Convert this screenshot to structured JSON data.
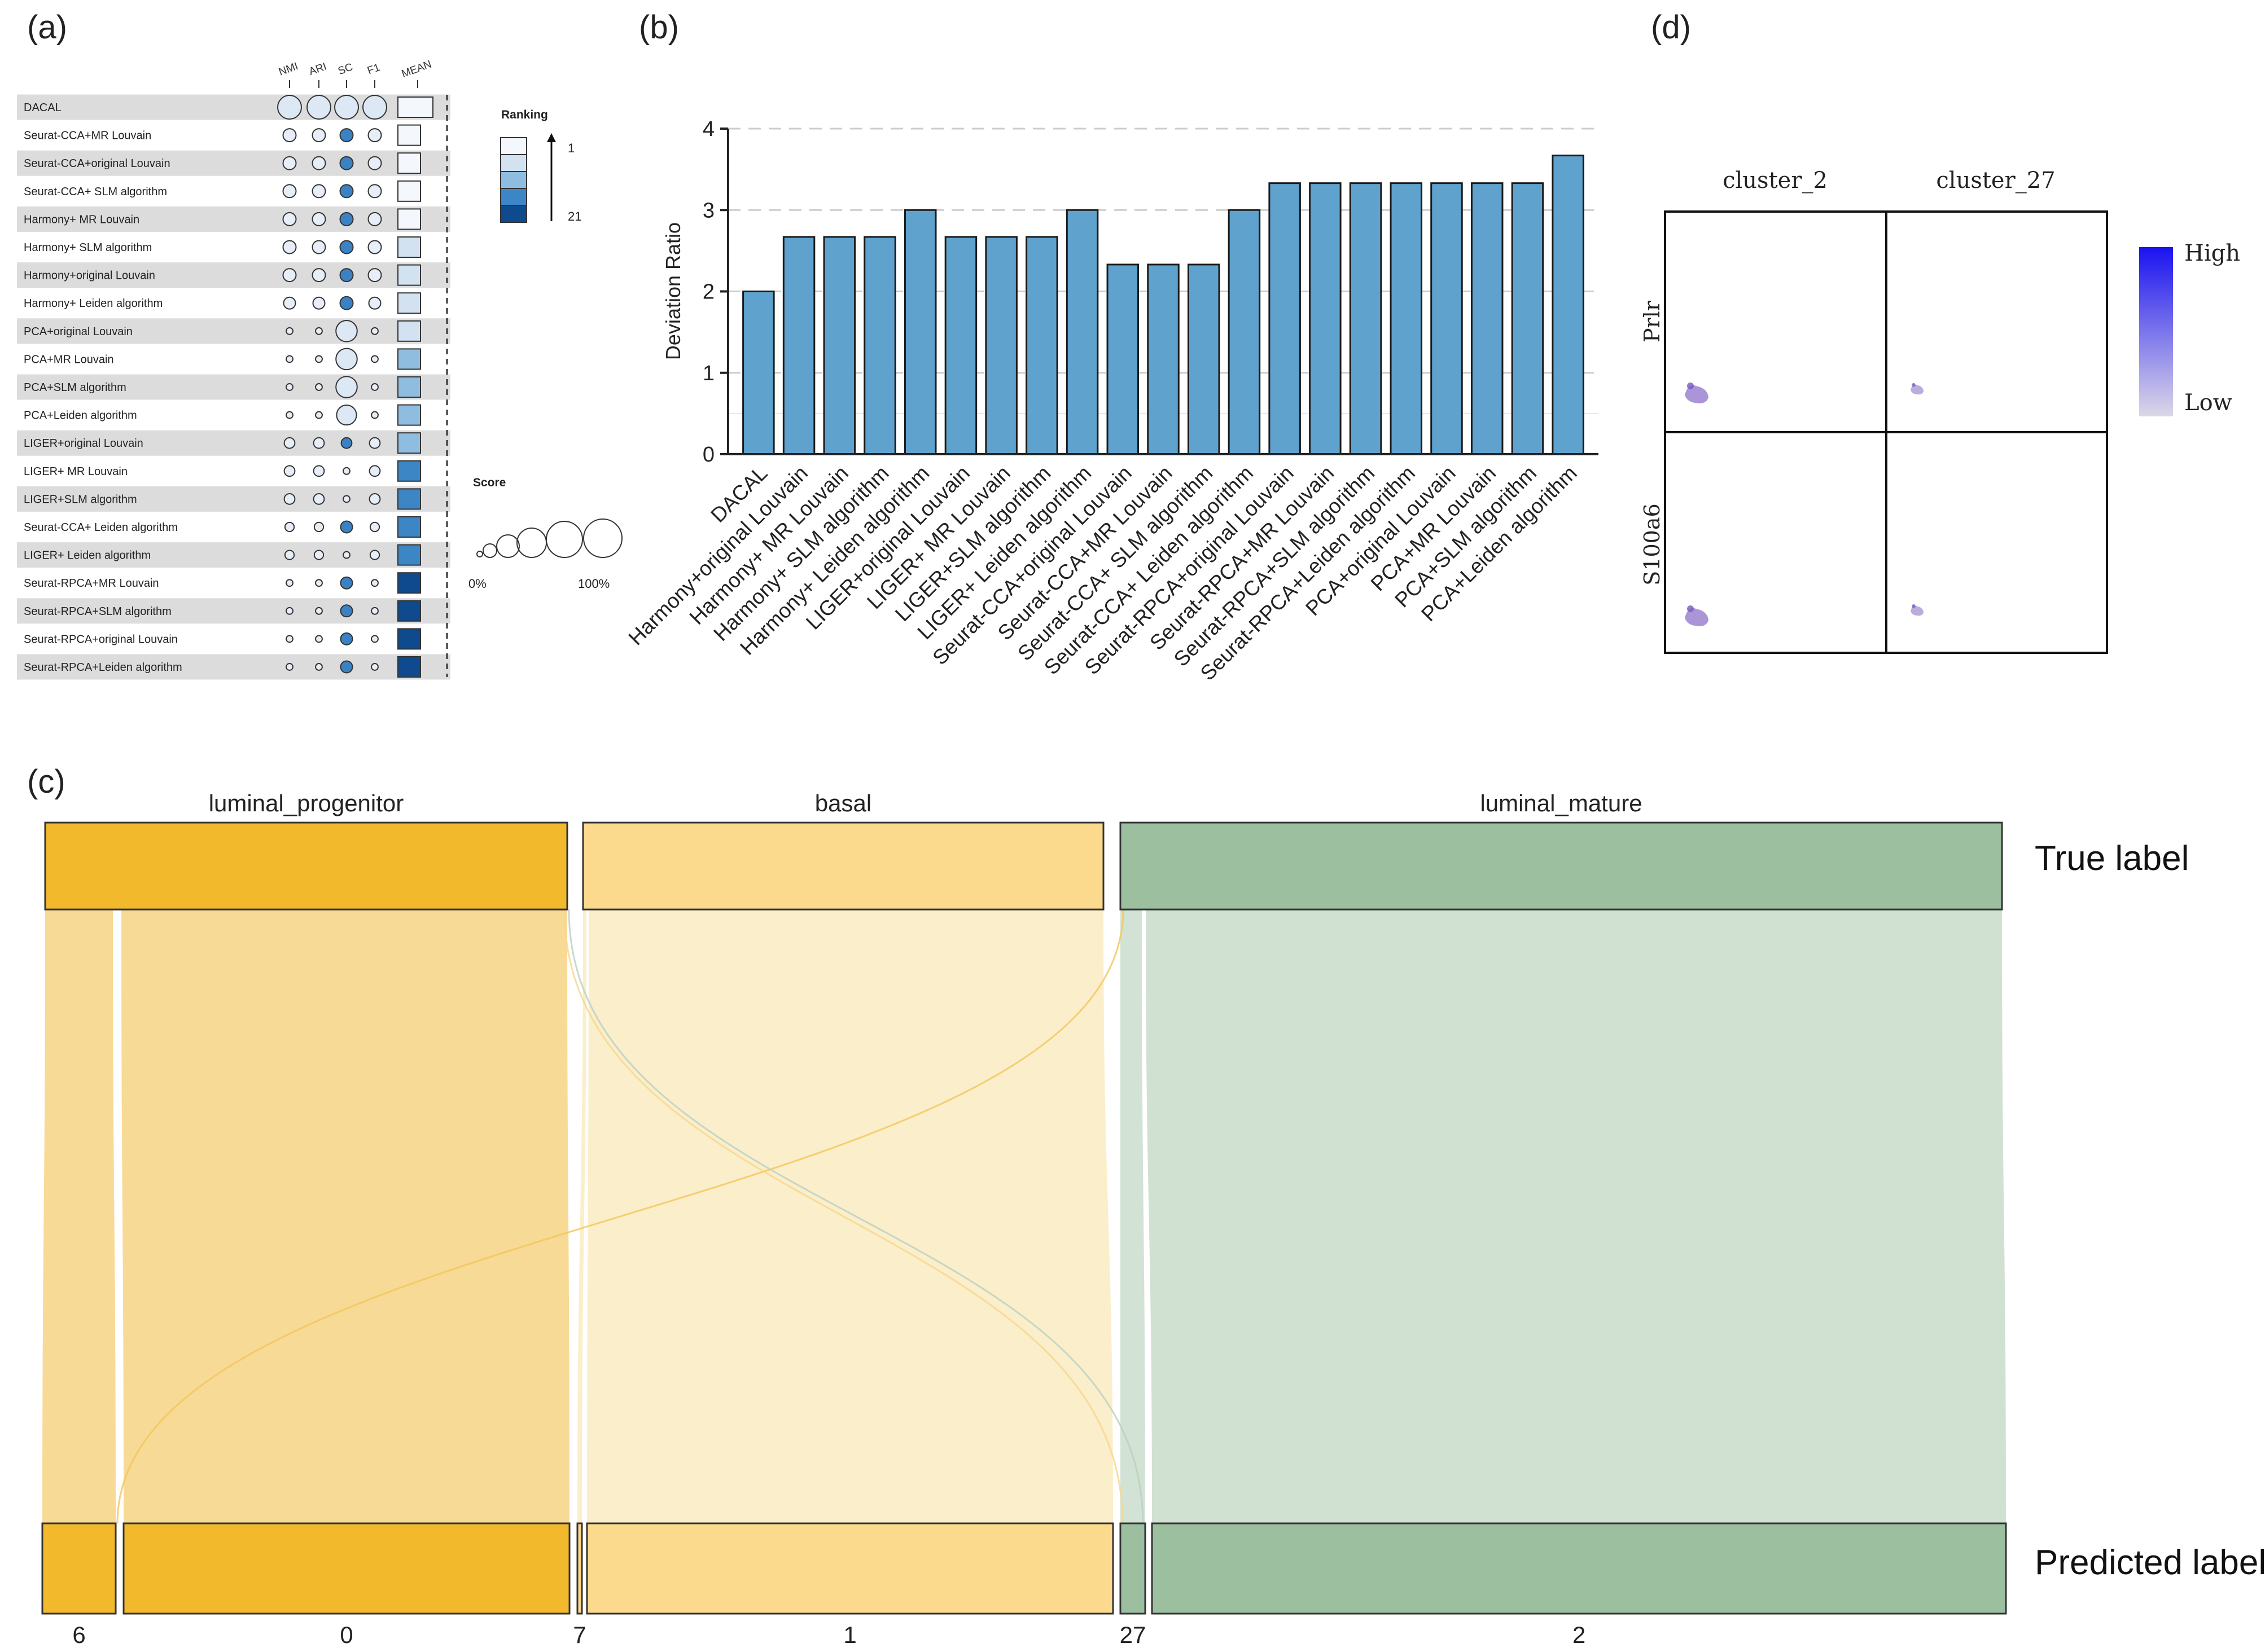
{
  "panels": {
    "a": "(a)",
    "b": "(b)",
    "c": "(c)",
    "d": "(d)"
  },
  "chart_data": [
    {
      "panel": "a",
      "type": "table",
      "columns": [
        "NMI",
        "ARI",
        "SC",
        "F1",
        "MEAN"
      ],
      "rows": [
        {
          "method": "DACAL",
          "scores": [
            100,
            100,
            100,
            100
          ],
          "rank": 1
        },
        {
          "method": "Seurat-CCA+MR Louvain",
          "scores": [
            30,
            30,
            30,
            30
          ],
          "rank": 2
        },
        {
          "method": "Seurat-CCA+original Louvain",
          "scores": [
            30,
            30,
            30,
            30
          ],
          "rank": 3
        },
        {
          "method": "Seurat-CCA+ SLM algorithm",
          "scores": [
            30,
            30,
            30,
            30
          ],
          "rank": 4
        },
        {
          "method": "Harmony+ MR Louvain",
          "scores": [
            30,
            30,
            30,
            30
          ],
          "rank": 5
        },
        {
          "method": "Harmony+ SLM algorithm",
          "scores": [
            30,
            30,
            30,
            30
          ],
          "rank": 6
        },
        {
          "method": "Harmony+original Louvain",
          "scores": [
            30,
            30,
            30,
            30
          ],
          "rank": 7
        },
        {
          "method": "Harmony+ Leiden algorithm",
          "scores": [
            25,
            25,
            30,
            25
          ],
          "rank": 8
        },
        {
          "method": "PCA+original Louvain",
          "scores": [
            8,
            8,
            80,
            8
          ],
          "rank": 9
        },
        {
          "method": "PCA+MR Louvain",
          "scores": [
            8,
            8,
            80,
            8
          ],
          "rank": 10
        },
        {
          "method": "PCA+SLM algorithm",
          "scores": [
            8,
            8,
            80,
            8
          ],
          "rank": 11
        },
        {
          "method": "PCA+Leiden algorithm",
          "scores": [
            8,
            8,
            70,
            8
          ],
          "rank": 12
        },
        {
          "method": "LIGER+original Louvain",
          "scores": [
            20,
            20,
            20,
            20
          ],
          "rank": 13
        },
        {
          "method": "LIGER+ MR Louvain",
          "scores": [
            20,
            20,
            8,
            20
          ],
          "rank": 14
        },
        {
          "method": "LIGER+SLM algorithm",
          "scores": [
            20,
            20,
            8,
            20
          ],
          "rank": 15
        },
        {
          "method": "Seurat-CCA+ Leiden algorithm",
          "scores": [
            15,
            15,
            25,
            15
          ],
          "rank": 16
        },
        {
          "method": "LIGER+ Leiden algorithm",
          "scores": [
            15,
            15,
            8,
            15
          ],
          "rank": 17
        },
        {
          "method": "Seurat-RPCA+MR Louvain",
          "scores": [
            8,
            8,
            25,
            8
          ],
          "rank": 18
        },
        {
          "method": "Seurat-RPCA+SLM algorithm",
          "scores": [
            8,
            8,
            25,
            8
          ],
          "rank": 19
        },
        {
          "method": "Seurat-RPCA+original Louvain",
          "scores": [
            8,
            8,
            25,
            8
          ],
          "rank": 20
        },
        {
          "method": "Seurat-RPCA+Leiden algorithm",
          "scores": [
            8,
            8,
            25,
            8
          ],
          "rank": 21
        }
      ],
      "ranking_legend": {
        "title": "Ranking",
        "min_label": "1",
        "max_label": "21",
        "colors": [
          "#f4f8fd",
          "#d2e2f1",
          "#8fbde0",
          "#3d86c6",
          "#0f4a8e"
        ]
      },
      "score_legend": {
        "title": "Score",
        "min_label": "0%",
        "max_label": "100%"
      }
    },
    {
      "panel": "b",
      "type": "bar",
      "categories": [
        "DACAL",
        "Harmony+original Louvain",
        "Harmony+ MR Louvain",
        "Harmony+ SLM algorithm",
        "Harmony+ Leiden algorithm",
        "LIGER+original Louvain",
        "LIGER+ MR Louvain",
        "LIGER+SLM algorithm",
        "LIGER+ Leiden algorithm",
        "Seurat-CCA+original Louvain",
        "Seurat-CCA+MR Louvain",
        "Seurat-CCA+ SLM algorithm",
        "Seurat-CCA+ Leiden algorithm",
        "Seurat-RPCA+original Louvain",
        "Seurat-RPCA+MR Louvain",
        "Seurat-RPCA+SLM algorithm",
        "Seurat-RPCA+Leiden algorithm",
        "PCA+original Louvain",
        "PCA+MR Louvain",
        "PCA+SLM algorithm",
        "PCA+Leiden algorithm"
      ],
      "values": [
        2.0,
        2.67,
        2.67,
        2.67,
        3.0,
        2.67,
        2.67,
        2.67,
        3.0,
        2.33,
        2.33,
        2.33,
        3.0,
        3.33,
        3.33,
        3.33,
        3.33,
        3.33,
        3.33,
        3.33,
        3.67
      ],
      "ylabel": "Deviation Ratio",
      "xlabel": "",
      "ylim": [
        0,
        4
      ],
      "yticks": [
        "0",
        "1",
        "2",
        "3",
        "4"
      ],
      "bar_color": "#5ea2cd",
      "grid": true
    },
    {
      "panel": "c",
      "type": "sankey",
      "top_axis_label": "True label",
      "bottom_axis_label": "Predicted label",
      "true_labels": [
        {
          "name": "luminal_progenitor",
          "weight": 31,
          "color": "#f2b92d"
        },
        {
          "name": "basal",
          "weight": 31,
          "color": "#fbda8d"
        },
        {
          "name": "luminal_mature",
          "weight": 52,
          "color": "#9bbf9f"
        }
      ],
      "predicted_labels": [
        {
          "name": "6",
          "weight": 4.5,
          "color": "#f2b92d"
        },
        {
          "name": "0",
          "weight": 26.5,
          "color": "#f2b92d"
        },
        {
          "name": "7",
          "weight": 0.4,
          "color": "#fbda8d"
        },
        {
          "name": "1",
          "weight": 31,
          "color": "#fbda8d"
        },
        {
          "name": "27",
          "weight": 1.5,
          "color": "#9bbf9f"
        },
        {
          "name": "2",
          "weight": 50.5,
          "color": "#9bbf9f"
        }
      ],
      "flows": [
        {
          "from": "luminal_progenitor",
          "to": "6",
          "value": 4.2
        },
        {
          "from": "luminal_progenitor",
          "to": "0",
          "value": 26.5
        },
        {
          "from": "luminal_progenitor",
          "to": "27",
          "value": 0.3
        },
        {
          "from": "basal",
          "to": "7",
          "value": 0.4
        },
        {
          "from": "basal",
          "to": "1",
          "value": 30.3
        },
        {
          "from": "basal",
          "to": "6",
          "value": 0.3
        },
        {
          "from": "luminal_mature",
          "to": "27",
          "value": 1.2
        },
        {
          "from": "luminal_mature",
          "to": "2",
          "value": 50.5
        },
        {
          "from": "luminal_mature",
          "to": "1",
          "value": 0.3
        }
      ]
    },
    {
      "panel": "d",
      "type": "heatmap",
      "columns": [
        "cluster_2",
        "cluster_27"
      ],
      "rows": [
        "Prlr",
        "S100a6"
      ],
      "values": [
        [
          0.45,
          0.25
        ],
        [
          0.45,
          0.25
        ]
      ],
      "legend": {
        "high_label": "High",
        "low_label": "Low",
        "high_color": "#1a12f0",
        "low_color": "#d8d4e6"
      }
    }
  ]
}
